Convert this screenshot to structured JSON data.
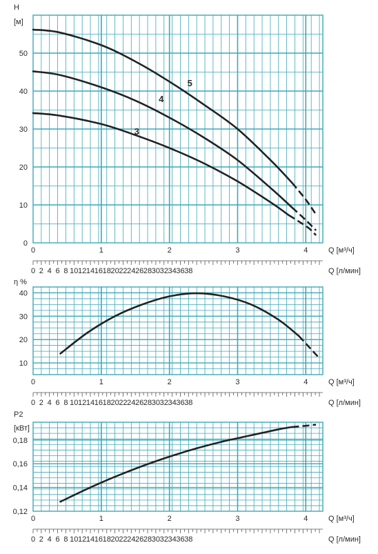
{
  "charts": [
    {
      "id": "head",
      "ylabel_lines": [
        "H",
        "[м]"
      ],
      "yticks": [
        "0",
        "10",
        "20",
        "30",
        "40",
        "50"
      ],
      "xticks_m3h": [
        "0",
        "1",
        "2",
        "3",
        "4"
      ],
      "xlabel_m3h": "Q [м³/ч]",
      "xticks_lmin": [
        "0",
        "2",
        "4",
        "6",
        "8",
        "10",
        "12",
        "14",
        "16",
        "18",
        "20",
        "22",
        "24",
        "26",
        "28",
        "30",
        "32",
        "34",
        "36",
        "38"
      ],
      "xlabel_lmin": "Q [л/мин]"
    },
    {
      "id": "eff",
      "ylabel_lines": [
        "η %"
      ],
      "yticks": [
        "10",
        "20",
        "30",
        "40"
      ],
      "xticks_m3h": [
        "0",
        "1",
        "2",
        "3",
        "4"
      ],
      "xlabel_m3h": "Q [м³/ч]",
      "xticks_lmin": [
        "0",
        "2",
        "4",
        "6",
        "8",
        "10",
        "12",
        "14",
        "16",
        "18",
        "20",
        "22",
        "24",
        "26",
        "28",
        "30",
        "32",
        "34",
        "36",
        "38"
      ],
      "xlabel_lmin": "Q [л/мин]"
    },
    {
      "id": "power",
      "ylabel_lines": [
        "P2",
        "[кВт]"
      ],
      "yticks": [
        "0,12",
        "0,14",
        "0,16",
        "0,18"
      ],
      "xticks_m3h": [
        "0",
        "1",
        "2",
        "3",
        "4"
      ],
      "xlabel_m3h": "Q [м³/ч]",
      "xticks_lmin": [
        "0",
        "2",
        "4",
        "6",
        "8",
        "10",
        "12",
        "14",
        "16",
        "18",
        "20",
        "22",
        "24",
        "26",
        "28",
        "30",
        "32",
        "34",
        "36",
        "38"
      ],
      "xlabel_lmin": "Q [л/мин]"
    }
  ],
  "colors": {
    "grid": "#3aa7b8",
    "curve": "#222222",
    "text": "#2a2a2a"
  },
  "chart_data": [
    {
      "type": "line",
      "xlabel": "Q [м³/ч]",
      "ylabel": "H [м]",
      "xlim": [
        0,
        4.25
      ],
      "ylim": [
        0,
        55
      ],
      "grid": true,
      "series": [
        {
          "name": "3",
          "x": [
            0,
            0.4,
            1.0,
            1.5,
            2.0,
            2.5,
            3.0,
            3.5,
            3.75,
            3.9,
            4.05,
            4.15
          ],
          "y": [
            34.2,
            33.5,
            31.3,
            28.4,
            25.0,
            21.0,
            16.2,
            10.5,
            7.3,
            5.6,
            3.8,
            2.0
          ],
          "dashed_after": 3.75
        },
        {
          "name": "4",
          "x": [
            0,
            0.4,
            1.0,
            1.5,
            2.0,
            2.5,
            3.0,
            3.5,
            3.8,
            4.0,
            4.15
          ],
          "y": [
            45.2,
            44.2,
            41.0,
            37.5,
            33.0,
            27.8,
            21.8,
            14.2,
            9.3,
            6.0,
            3.3
          ],
          "dashed_after": 3.8
        },
        {
          "name": "5",
          "x": [
            0,
            0.4,
            1.0,
            1.5,
            2.0,
            2.5,
            3.0,
            3.5,
            3.8,
            4.0,
            4.15
          ],
          "y": [
            56.2,
            55.4,
            52.1,
            47.8,
            42.5,
            36.5,
            30.0,
            21.5,
            15.8,
            11.4,
            7.5
          ],
          "dashed_after": 3.8
        }
      ]
    },
    {
      "type": "line",
      "xlabel": "Q [м³/ч]",
      "ylabel": "η %",
      "xlim": [
        0,
        4.25
      ],
      "ylim": [
        5,
        42
      ],
      "grid": true,
      "series": [
        {
          "x": [
            0.4,
            0.8,
            1.2,
            1.6,
            2.0,
            2.4,
            2.8,
            3.2,
            3.6,
            3.9,
            4.2
          ],
          "y": [
            14.0,
            23.0,
            30.0,
            35.0,
            38.5,
            39.8,
            38.5,
            35.0,
            28.5,
            21.5,
            12.0
          ],
          "dashed_after": 3.8
        }
      ]
    },
    {
      "type": "line",
      "xlabel": "Q [м³/ч]",
      "ylabel": "P2 [кВт]",
      "xlim": [
        0,
        4.25
      ],
      "ylim": [
        0.12,
        0.195
      ],
      "grid": true,
      "series": [
        {
          "x": [
            0.4,
            0.8,
            1.2,
            1.6,
            2.0,
            2.4,
            2.8,
            3.2,
            3.6,
            3.8,
            4.0,
            4.15
          ],
          "y": [
            0.128,
            0.139,
            0.149,
            0.158,
            0.166,
            0.173,
            0.179,
            0.184,
            0.189,
            0.191,
            0.192,
            0.193
          ],
          "dashed_after": 3.8
        }
      ]
    }
  ]
}
